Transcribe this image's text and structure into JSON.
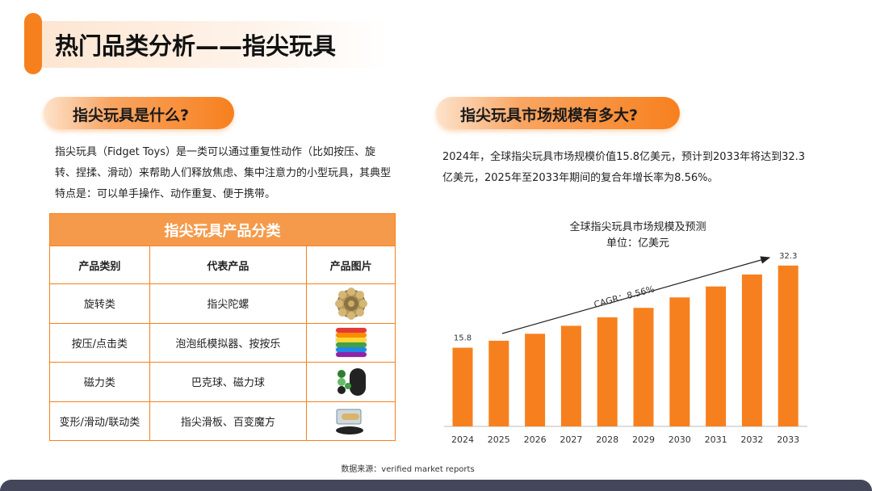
{
  "header": {
    "title": "热门品类分析——指尖玩具"
  },
  "left": {
    "heading": "指尖玩具是什么?",
    "paragraph": "指尖玩具（Fidget Toys）是一类可以通过重复性动作（比如按压、旋转、捏揉、滑动）来帮助人们释放焦虑、集中注意力的小型玩具，其典型特点是：可以单手操作、动作重复、便于携带。"
  },
  "table": {
    "title": "指尖玩具产品分类",
    "headers": [
      "产品类别",
      "代表产品",
      "产品图片"
    ],
    "rows": [
      {
        "category": "旋转类",
        "product": "指尖陀螺",
        "image": "fidget-spinner"
      },
      {
        "category": "按压/点击类",
        "product": "泡泡纸模拟器、按按乐",
        "image": "pop-it-toy"
      },
      {
        "category": "磁力类",
        "product": "巴克球、磁力球",
        "image": "magnetic-balls"
      },
      {
        "category": "变形/滑动/联动类",
        "product": "指尖滑板、百变魔方",
        "image": "finger-skateboard"
      }
    ]
  },
  "right": {
    "heading": "指尖玩具市场规模有多大?",
    "paragraph": "2024年，全球指尖玩具市场规模价值15.8亿美元，预计到2033年将达到32.3亿美元，2025年至2033年期间的复合年增长率为8.56%。"
  },
  "chart_data": {
    "type": "bar",
    "title": "全球指尖玩具市场规模及预测",
    "subtitle": "单位：亿美元",
    "categories": [
      "2024",
      "2025",
      "2026",
      "2027",
      "2028",
      "2029",
      "2030",
      "2031",
      "2032",
      "2033"
    ],
    "values": [
      15.8,
      17.2,
      18.6,
      20.2,
      21.9,
      23.8,
      25.9,
      28.1,
      30.5,
      32.3
    ],
    "data_labels": [
      "15.8",
      "",
      "",
      "",
      "",
      "",
      "",
      "",
      "",
      "32.3"
    ],
    "annotation": "CAGR：8.56%",
    "ylim": [
      0,
      36
    ],
    "bar_color": "#f7801e",
    "grid": false
  },
  "footer": {
    "source": "数据来源：verified market reports"
  },
  "colors": {
    "accent": "#f7801e",
    "table_header": "#f59a4a",
    "footer_bar": "#44475a"
  }
}
